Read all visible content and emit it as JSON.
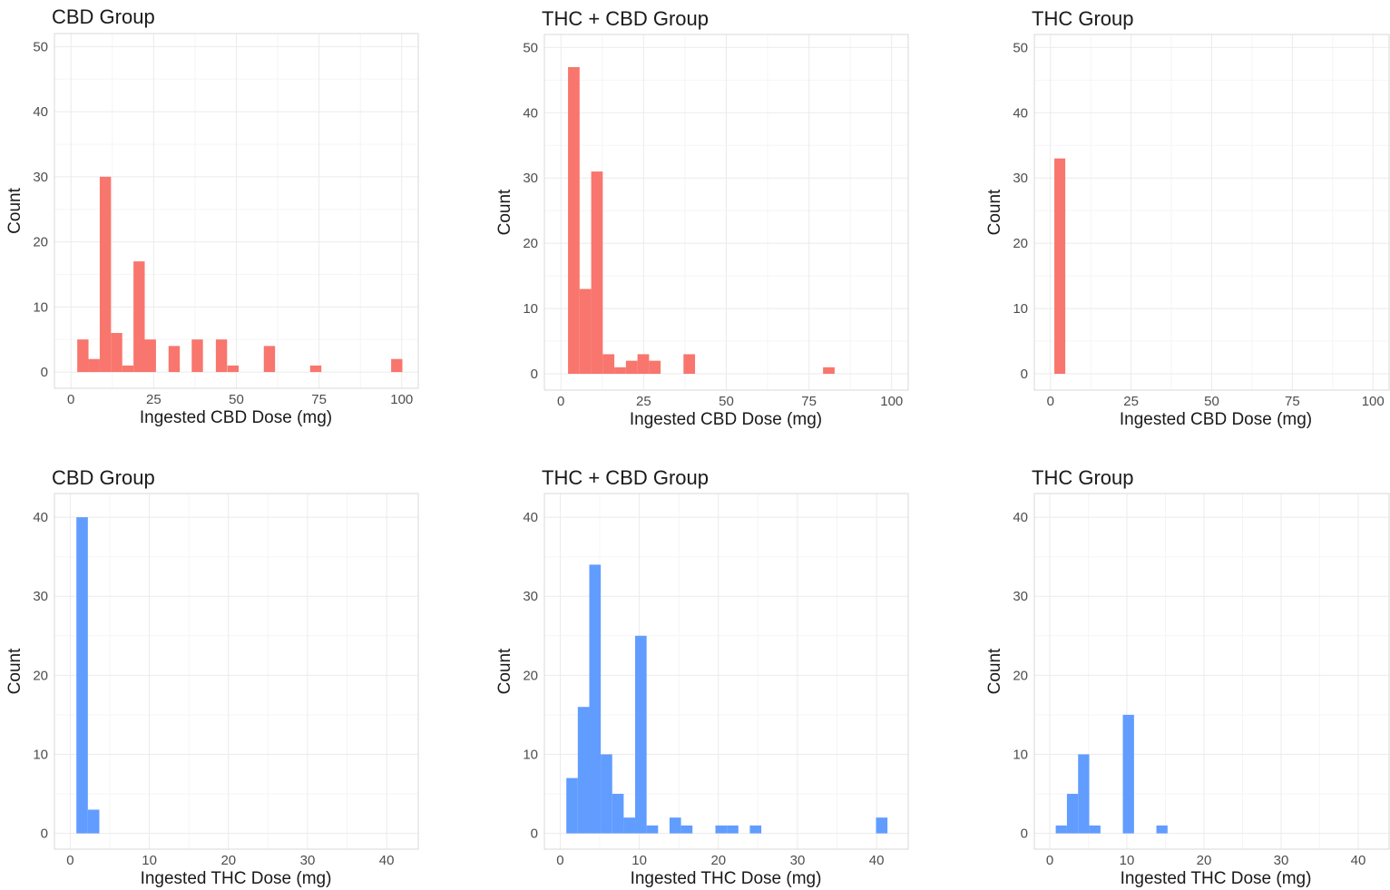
{
  "chart_data": [
    {
      "type": "bar",
      "title": "CBD Group",
      "xlabel": "Ingested CBD Dose (mg)",
      "ylabel": "Count",
      "xlim": [
        -5,
        105
      ],
      "ylim": [
        -2.5,
        52
      ],
      "xticks": [
        0,
        25,
        50,
        75,
        100
      ],
      "yticks": [
        0,
        10,
        20,
        30,
        40,
        50
      ],
      "bar_color": "#F8766D",
      "bin_width": 3.4,
      "bins": [
        {
          "x": 3.6,
          "count": 5
        },
        {
          "x": 7.0,
          "count": 2
        },
        {
          "x": 10.4,
          "count": 30
        },
        {
          "x": 13.8,
          "count": 6
        },
        {
          "x": 17.2,
          "count": 1
        },
        {
          "x": 20.6,
          "count": 17
        },
        {
          "x": 24.0,
          "count": 5
        },
        {
          "x": 31.2,
          "count": 4
        },
        {
          "x": 38.2,
          "count": 5
        },
        {
          "x": 45.5,
          "count": 5
        },
        {
          "x": 49.0,
          "count": 1
        },
        {
          "x": 60.0,
          "count": 4
        },
        {
          "x": 74.0,
          "count": 1
        },
        {
          "x": 98.5,
          "count": 2
        }
      ]
    },
    {
      "type": "bar",
      "title": "THC + CBD Group",
      "xlabel": "Ingested CBD Dose (mg)",
      "ylabel": "Count",
      "xlim": [
        -5,
        105
      ],
      "ylim": [
        -2.5,
        52
      ],
      "xticks": [
        0,
        25,
        50,
        75,
        100
      ],
      "yticks": [
        0,
        10,
        20,
        30,
        40,
        50
      ],
      "bar_color": "#F8766D",
      "bin_width": 3.5,
      "bins": [
        {
          "x": 3.9,
          "count": 47
        },
        {
          "x": 7.4,
          "count": 13
        },
        {
          "x": 10.9,
          "count": 31
        },
        {
          "x": 14.4,
          "count": 3
        },
        {
          "x": 17.9,
          "count": 1
        },
        {
          "x": 21.4,
          "count": 2
        },
        {
          "x": 24.9,
          "count": 3
        },
        {
          "x": 28.4,
          "count": 2
        },
        {
          "x": 38.8,
          "count": 3
        },
        {
          "x": 81.0,
          "count": 1
        }
      ]
    },
    {
      "type": "bar",
      "title": "THC Group",
      "xlabel": "Ingested CBD Dose (mg)",
      "ylabel": "Count",
      "xlim": [
        -5,
        105
      ],
      "ylim": [
        -2.5,
        52
      ],
      "xticks": [
        0,
        25,
        50,
        75,
        100
      ],
      "yticks": [
        0,
        10,
        20,
        30,
        40,
        50
      ],
      "bar_color": "#F8766D",
      "bin_width": 3.4,
      "bins": [
        {
          "x": 2.9,
          "count": 33
        }
      ]
    },
    {
      "type": "bar",
      "title": "CBD Group",
      "xlabel": "Ingested THC Dose (mg)",
      "ylabel": "Count",
      "xlim": [
        -2.0,
        44.0
      ],
      "ylim": [
        -2.0,
        43.0
      ],
      "xticks": [
        0,
        10,
        20,
        30,
        40
      ],
      "yticks": [
        0,
        10,
        20,
        30,
        40
      ],
      "bar_color": "#619CFF",
      "bin_width": 1.45,
      "bins": [
        {
          "x": 1.5,
          "count": 40
        },
        {
          "x": 2.95,
          "count": 3
        }
      ]
    },
    {
      "type": "bar",
      "title": "THC + CBD Group",
      "xlabel": "Ingested THC Dose (mg)",
      "ylabel": "Count",
      "xlim": [
        -2.0,
        44.0
      ],
      "ylim": [
        -2.0,
        43.0
      ],
      "xticks": [
        0,
        10,
        20,
        30,
        40
      ],
      "yticks": [
        0,
        10,
        20,
        30,
        40
      ],
      "bar_color": "#619CFF",
      "bin_width": 1.45,
      "bins": [
        {
          "x": 1.5,
          "count": 7
        },
        {
          "x": 2.95,
          "count": 16
        },
        {
          "x": 4.4,
          "count": 34
        },
        {
          "x": 5.85,
          "count": 10
        },
        {
          "x": 7.3,
          "count": 5
        },
        {
          "x": 8.75,
          "count": 2
        },
        {
          "x": 10.2,
          "count": 25
        },
        {
          "x": 11.65,
          "count": 1
        },
        {
          "x": 14.55,
          "count": 2
        },
        {
          "x": 16.0,
          "count": 1
        },
        {
          "x": 20.35,
          "count": 1
        },
        {
          "x": 21.8,
          "count": 1
        },
        {
          "x": 24.7,
          "count": 1
        },
        {
          "x": 40.65,
          "count": 2
        }
      ]
    },
    {
      "type": "bar",
      "title": "THC Group",
      "xlabel": "Ingested THC Dose (mg)",
      "ylabel": "Count",
      "xlim": [
        -2.0,
        44.0
      ],
      "ylim": [
        -2.0,
        43.0
      ],
      "xticks": [
        0,
        10,
        20,
        30,
        40
      ],
      "yticks": [
        0,
        10,
        20,
        30,
        40
      ],
      "bar_color": "#619CFF",
      "bin_width": 1.45,
      "bins": [
        {
          "x": 1.5,
          "count": 1
        },
        {
          "x": 2.95,
          "count": 5
        },
        {
          "x": 4.4,
          "count": 10
        },
        {
          "x": 5.85,
          "count": 1
        },
        {
          "x": 10.2,
          "count": 15
        },
        {
          "x": 14.55,
          "count": 1
        }
      ]
    }
  ]
}
